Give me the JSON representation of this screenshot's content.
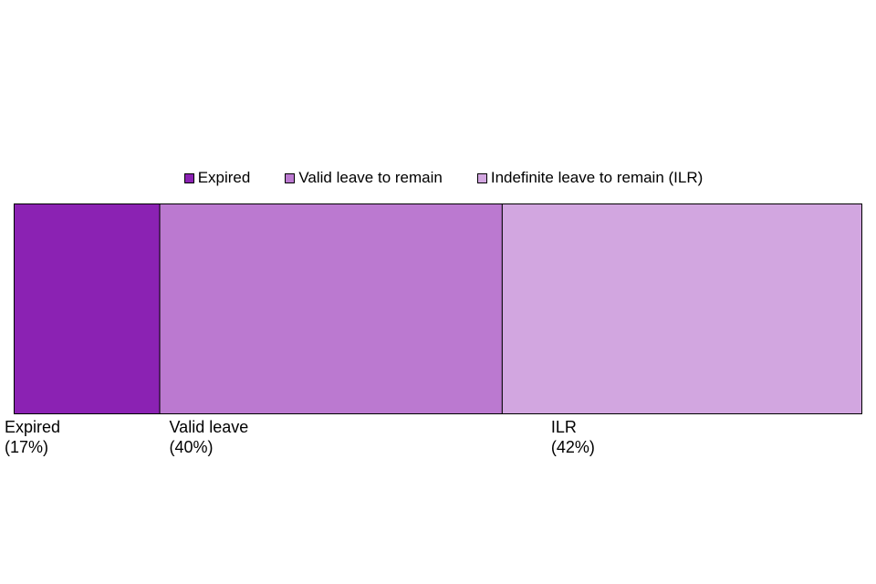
{
  "chart_data": {
    "type": "bar",
    "stacked": true,
    "orientation": "horizontal",
    "percent_stacked": true,
    "categories": [
      "Expired",
      "Valid leave to remain",
      "Indefinite leave to remain (ILR)"
    ],
    "values": [
      17,
      40,
      42
    ],
    "unit": "%",
    "legend": {
      "placement": "top",
      "entries": [
        "Expired",
        "Valid leave to remain",
        "Indefinite leave to remain (ILR)"
      ]
    },
    "segment_labels": [
      {
        "name": "Expired",
        "value": "(17%)"
      },
      {
        "name": "Valid leave",
        "value": "(40%)"
      },
      {
        "name": "ILR",
        "value": "(42%)"
      }
    ],
    "colors": [
      "#8b22b3",
      "#bb79d0",
      "#d2a6e0"
    ],
    "grid": false,
    "axes_visible": false
  }
}
